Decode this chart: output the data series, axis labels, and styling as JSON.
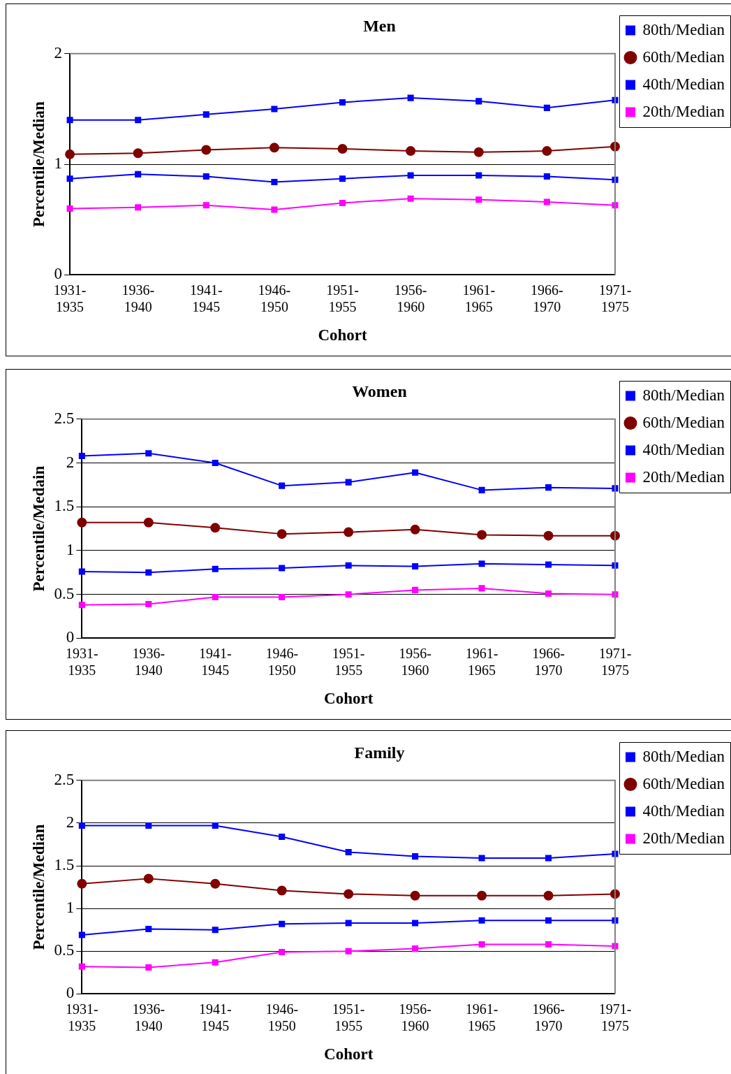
{
  "chart_data": [
    {
      "type": "line",
      "title": "Men",
      "xlabel": "Cohort",
      "ylabel": "Percentile/Median",
      "categories": [
        "1931-1935",
        "1936-1940",
        "1941-1945",
        "1946-1950",
        "1951-1955",
        "1956-1960",
        "1961-1965",
        "1966-1970",
        "1971-1975"
      ],
      "series": [
        {
          "name": "80th/Median",
          "color": "#0000ff",
          "marker": "square",
          "values": [
            1.4,
            1.4,
            1.45,
            1.5,
            1.56,
            1.6,
            1.57,
            1.51,
            1.58
          ]
        },
        {
          "name": "60th/Median",
          "color": "#800000",
          "marker": "circle",
          "values": [
            1.09,
            1.1,
            1.13,
            1.15,
            1.14,
            1.12,
            1.11,
            1.12,
            1.16
          ]
        },
        {
          "name": "40th/Median",
          "color": "#0000ff",
          "marker": "square",
          "values": [
            0.87,
            0.91,
            0.89,
            0.84,
            0.87,
            0.9,
            0.9,
            0.89,
            0.86
          ]
        },
        {
          "name": "20th/Median",
          "color": "#ff00ff",
          "marker": "square",
          "values": [
            0.6,
            0.61,
            0.63,
            0.59,
            0.65,
            0.69,
            0.68,
            0.66,
            0.63
          ]
        }
      ],
      "ylim": [
        0,
        2
      ],
      "yticks": [
        0,
        1,
        2
      ],
      "grid": "y",
      "legend": "top right",
      "line_style": "solid"
    },
    {
      "type": "line",
      "title": "Women",
      "xlabel": "Cohort",
      "ylabel": "Percentile/Medain",
      "categories": [
        "1931-1935",
        "1936-1940",
        "1941-1945",
        "1946-1950",
        "1951-1955",
        "1956-1960",
        "1961-1965",
        "1966-1970",
        "1971-1975"
      ],
      "series": [
        {
          "name": "80th/Median",
          "color": "#0000ff",
          "marker": "square",
          "values": [
            2.08,
            2.11,
            2.0,
            1.74,
            1.78,
            1.89,
            1.69,
            1.72,
            1.71
          ]
        },
        {
          "name": "60th/Median",
          "color": "#800000",
          "marker": "circle",
          "values": [
            1.32,
            1.32,
            1.26,
            1.19,
            1.21,
            1.24,
            1.18,
            1.17,
            1.17
          ]
        },
        {
          "name": "40th/Median",
          "color": "#0000ff",
          "marker": "square",
          "values": [
            0.76,
            0.75,
            0.79,
            0.8,
            0.83,
            0.82,
            0.85,
            0.84,
            0.83
          ]
        },
        {
          "name": "20th/Median",
          "color": "#ff00ff",
          "marker": "square",
          "values": [
            0.38,
            0.39,
            0.47,
            0.47,
            0.5,
            0.55,
            0.57,
            0.51,
            0.5
          ]
        }
      ],
      "ylim": [
        0,
        2.5
      ],
      "yticks": [
        0,
        0.5,
        1,
        1.5,
        2,
        2.5
      ],
      "grid": "y",
      "legend": "top right",
      "line_style": "solid"
    },
    {
      "type": "line",
      "title": "Family",
      "xlabel": "Cohort",
      "ylabel": "Percentile/Median",
      "categories": [
        "1931-1935",
        "1936-1940",
        "1941-1945",
        "1946-1950",
        "1951-1955",
        "1956-1960",
        "1961-1965",
        "1966-1970",
        "1971-1975"
      ],
      "series": [
        {
          "name": "80th/Median",
          "color": "#0000ff",
          "marker": "square",
          "values": [
            1.97,
            1.97,
            1.97,
            1.84,
            1.66,
            1.61,
            1.59,
            1.59,
            1.64
          ]
        },
        {
          "name": "60th/Median",
          "color": "#800000",
          "marker": "circle",
          "values": [
            1.29,
            1.35,
            1.29,
            1.21,
            1.17,
            1.15,
            1.15,
            1.15,
            1.17
          ]
        },
        {
          "name": "40th/Median",
          "color": "#0000ff",
          "marker": "square",
          "values": [
            0.69,
            0.76,
            0.75,
            0.82,
            0.83,
            0.83,
            0.86,
            0.86,
            0.86
          ]
        },
        {
          "name": "20th/Median",
          "color": "#ff00ff",
          "marker": "square",
          "values": [
            0.32,
            0.31,
            0.37,
            0.49,
            0.5,
            0.53,
            0.58,
            0.58,
            0.56
          ]
        }
      ],
      "ylim": [
        0,
        2.5
      ],
      "yticks": [
        0,
        0.5,
        1,
        1.5,
        2,
        2.5
      ],
      "grid": "y",
      "legend": "top right",
      "line_style": "solid"
    }
  ]
}
